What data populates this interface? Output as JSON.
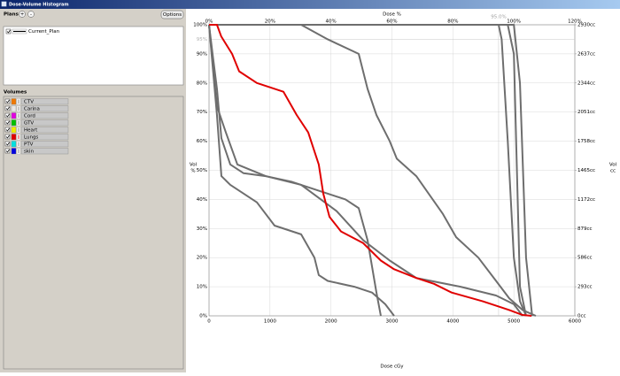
{
  "window": {
    "title": "Dose-Volume Histogram"
  },
  "plans": {
    "label": "Plans",
    "add": "+",
    "remove": "-",
    "options": "Options",
    "items": [
      "Current_Plan"
    ]
  },
  "volumes": {
    "label": "Volumes"
  },
  "chart_data": {
    "type": "line",
    "xlabel": "Dose cGy",
    "x2label": "Dose %",
    "ylabel": [
      "Vol",
      "%"
    ],
    "y2label": [
      "Vol",
      "cc"
    ],
    "xlim": [
      0,
      6000
    ],
    "xticks": [
      0,
      1000,
      2000,
      3000,
      4000,
      5000,
      6000
    ],
    "x2lim": [
      0,
      120
    ],
    "x2ticks": [
      {
        "value": 0,
        "label": "0%"
      },
      {
        "value": 20,
        "label": "20%"
      },
      {
        "value": 40,
        "label": "40%"
      },
      {
        "value": 60,
        "label": "60%"
      },
      {
        "value": 80,
        "label": "80%"
      },
      {
        "value": 100,
        "label": "100%"
      },
      {
        "value": 120,
        "label": "120%"
      }
    ],
    "ylim": [
      0,
      100
    ],
    "yticks": [
      {
        "value": 0,
        "label": "0%"
      },
      {
        "value": 10,
        "label": "10%"
      },
      {
        "value": 20,
        "label": "20%"
      },
      {
        "value": 30,
        "label": "30%"
      },
      {
        "value": 40,
        "label": "40%"
      },
      {
        "value": 50,
        "label": "50%"
      },
      {
        "value": 60,
        "label": "60%"
      },
      {
        "value": 70,
        "label": "70%"
      },
      {
        "value": 80,
        "label": "80%"
      },
      {
        "value": 90,
        "label": "90%"
      },
      {
        "value": 100,
        "label": "100%"
      }
    ],
    "y2lim": [
      0,
      2930
    ],
    "y2ticks": [
      {
        "value": 0,
        "label": "0cc"
      },
      {
        "value": 293,
        "label": "293cc"
      },
      {
        "value": 586,
        "label": "586cc"
      },
      {
        "value": 879,
        "label": "879cc"
      },
      {
        "value": 1172,
        "label": "1172cc"
      },
      {
        "value": 1465,
        "label": "1465cc"
      },
      {
        "value": 1758,
        "label": "1758cc"
      },
      {
        "value": 2051,
        "label": "2051cc"
      },
      {
        "value": 2344,
        "label": "2344cc"
      },
      {
        "value": 2637,
        "label": "2637cc"
      },
      {
        "value": 2930,
        "label": "2930cc"
      }
    ],
    "grid": true,
    "reference_lines": {
      "dose": {
        "value": 95,
        "label": "95.0%"
      },
      "volume": {
        "value": 95,
        "label": "95%"
      }
    },
    "series": [
      {
        "name": "CTV",
        "swatch": "#f07800",
        "color": "#6e6e6e",
        "x": [
          0,
          4900,
          5000,
          5050,
          5100,
          5200
        ],
        "values": [
          100,
          100,
          90,
          50,
          10,
          0
        ]
      },
      {
        "name": "Carina",
        "swatch": "#e8e8e8",
        "color": "#6e6e6e",
        "x": [
          0,
          58,
          130,
          203,
          349,
          567,
          930,
          1366,
          1800,
          2238,
          2455,
          2600,
          2746,
          2818
        ],
        "values": [
          100,
          90,
          78,
          61,
          52,
          49,
          48,
          46,
          43,
          40,
          37,
          26,
          8,
          0
        ]
      },
      {
        "name": "Cord",
        "swatch": "#e000e0",
        "color": "#6e6e6e",
        "x": [
          0,
          130,
          203,
          349,
          785,
          1075,
          1511,
          1729,
          1800,
          1947,
          2383,
          2673,
          2891,
          3036
        ],
        "values": [
          100,
          69,
          48,
          45,
          39,
          31,
          28,
          20,
          14,
          12,
          10,
          8,
          4,
          0
        ]
      },
      {
        "name": "GTV",
        "swatch": "#00c000",
        "color": "#6e6e6e",
        "x": [
          0,
          5000,
          5100,
          5200,
          5300
        ],
        "values": [
          100,
          100,
          80,
          20,
          0
        ]
      },
      {
        "name": "Heart",
        "swatch": "#f0f000",
        "color": "#6e6e6e",
        "x": [
          0,
          1511,
          1947,
          2455,
          2600,
          2746,
          2964,
          3080,
          3400,
          3836,
          4054,
          4417,
          4708,
          4925,
          5143,
          5360
        ],
        "values": [
          100,
          100,
          95,
          90,
          78,
          69,
          60,
          54,
          48,
          35,
          27,
          20,
          12,
          6,
          2,
          0
        ]
      },
      {
        "name": "Lungs",
        "swatch": "#e00000",
        "color": "#e00000",
        "x": [
          0,
          130,
          200,
          378,
          494,
          785,
          1220,
          1438,
          1627,
          1800,
          1874,
          1976,
          2165,
          2528,
          2673,
          2818,
          3036,
          3400,
          3690,
          3980,
          4490,
          4925,
          5143,
          5290
        ],
        "values": [
          100,
          100,
          96,
          90,
          84,
          80,
          77,
          69,
          63,
          52,
          42,
          34,
          29,
          25,
          22,
          19,
          16,
          13,
          11,
          8,
          5,
          2,
          0.3,
          0
        ]
      },
      {
        "name": "PTV",
        "swatch": "#00e0e0",
        "color": "#6e6e6e",
        "x": [
          0,
          4750,
          4800,
          4900,
          5000,
          5100,
          5200
        ],
        "values": [
          100,
          100,
          95,
          60,
          20,
          5,
          0
        ]
      },
      {
        "name": "skin",
        "swatch": "#0000e0",
        "color": "#6e6e6e",
        "x": [
          0,
          130,
          276,
          465,
          930,
          1511,
          2092,
          2528,
          2964,
          3400,
          4126,
          4708,
          5000,
          5143
        ],
        "values": [
          100,
          72,
          63,
          52,
          48,
          45,
          36,
          26,
          19,
          13,
          10,
          7,
          4,
          0
        ]
      }
    ]
  }
}
